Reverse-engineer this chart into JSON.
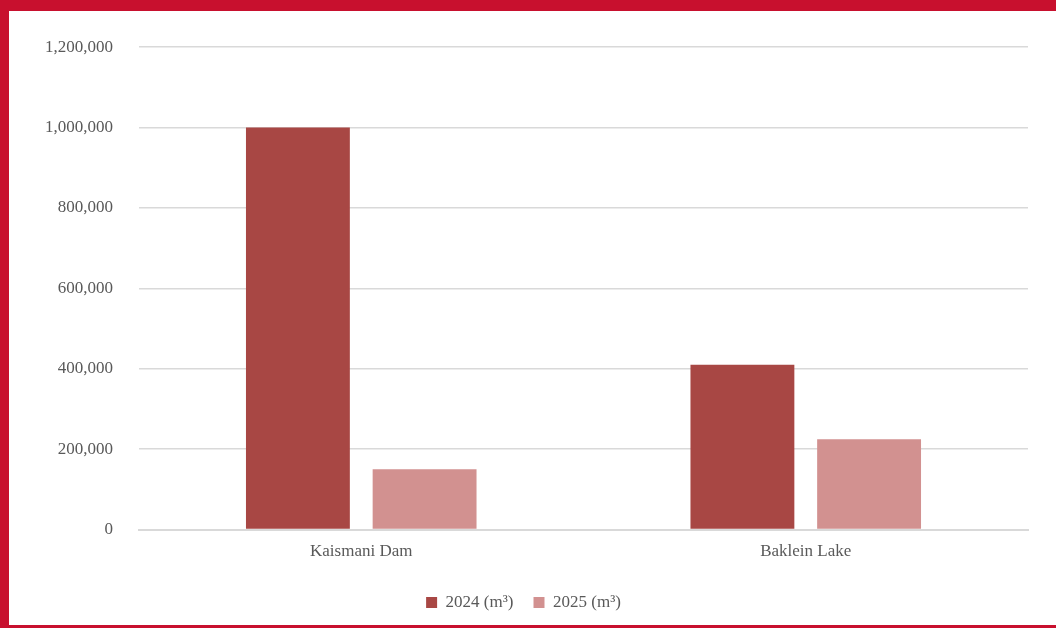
{
  "chart_data": {
    "type": "bar",
    "categories": [
      "Kaismani Dam",
      "Baklein Lake"
    ],
    "series": [
      {
        "name": "2024 (m³)",
        "color": "#a84744",
        "values": [
          1000000,
          410000
        ]
      },
      {
        "name": "2025 (m³)",
        "color": "#d29190",
        "values": [
          150000,
          225000
        ]
      }
    ],
    "ylim": [
      0,
      1200000
    ],
    "yticks": [
      {
        "value": 0,
        "label": "0"
      },
      {
        "value": 200000,
        "label": "200,000"
      },
      {
        "value": 400000,
        "label": "400,000"
      },
      {
        "value": 600000,
        "label": "600,000"
      },
      {
        "value": 800000,
        "label": "800,000"
      },
      {
        "value": 1000000,
        "label": "1,000,000"
      },
      {
        "value": 1200000,
        "label": "1,200,000"
      }
    ],
    "grid": "y",
    "legend": "bottom"
  }
}
